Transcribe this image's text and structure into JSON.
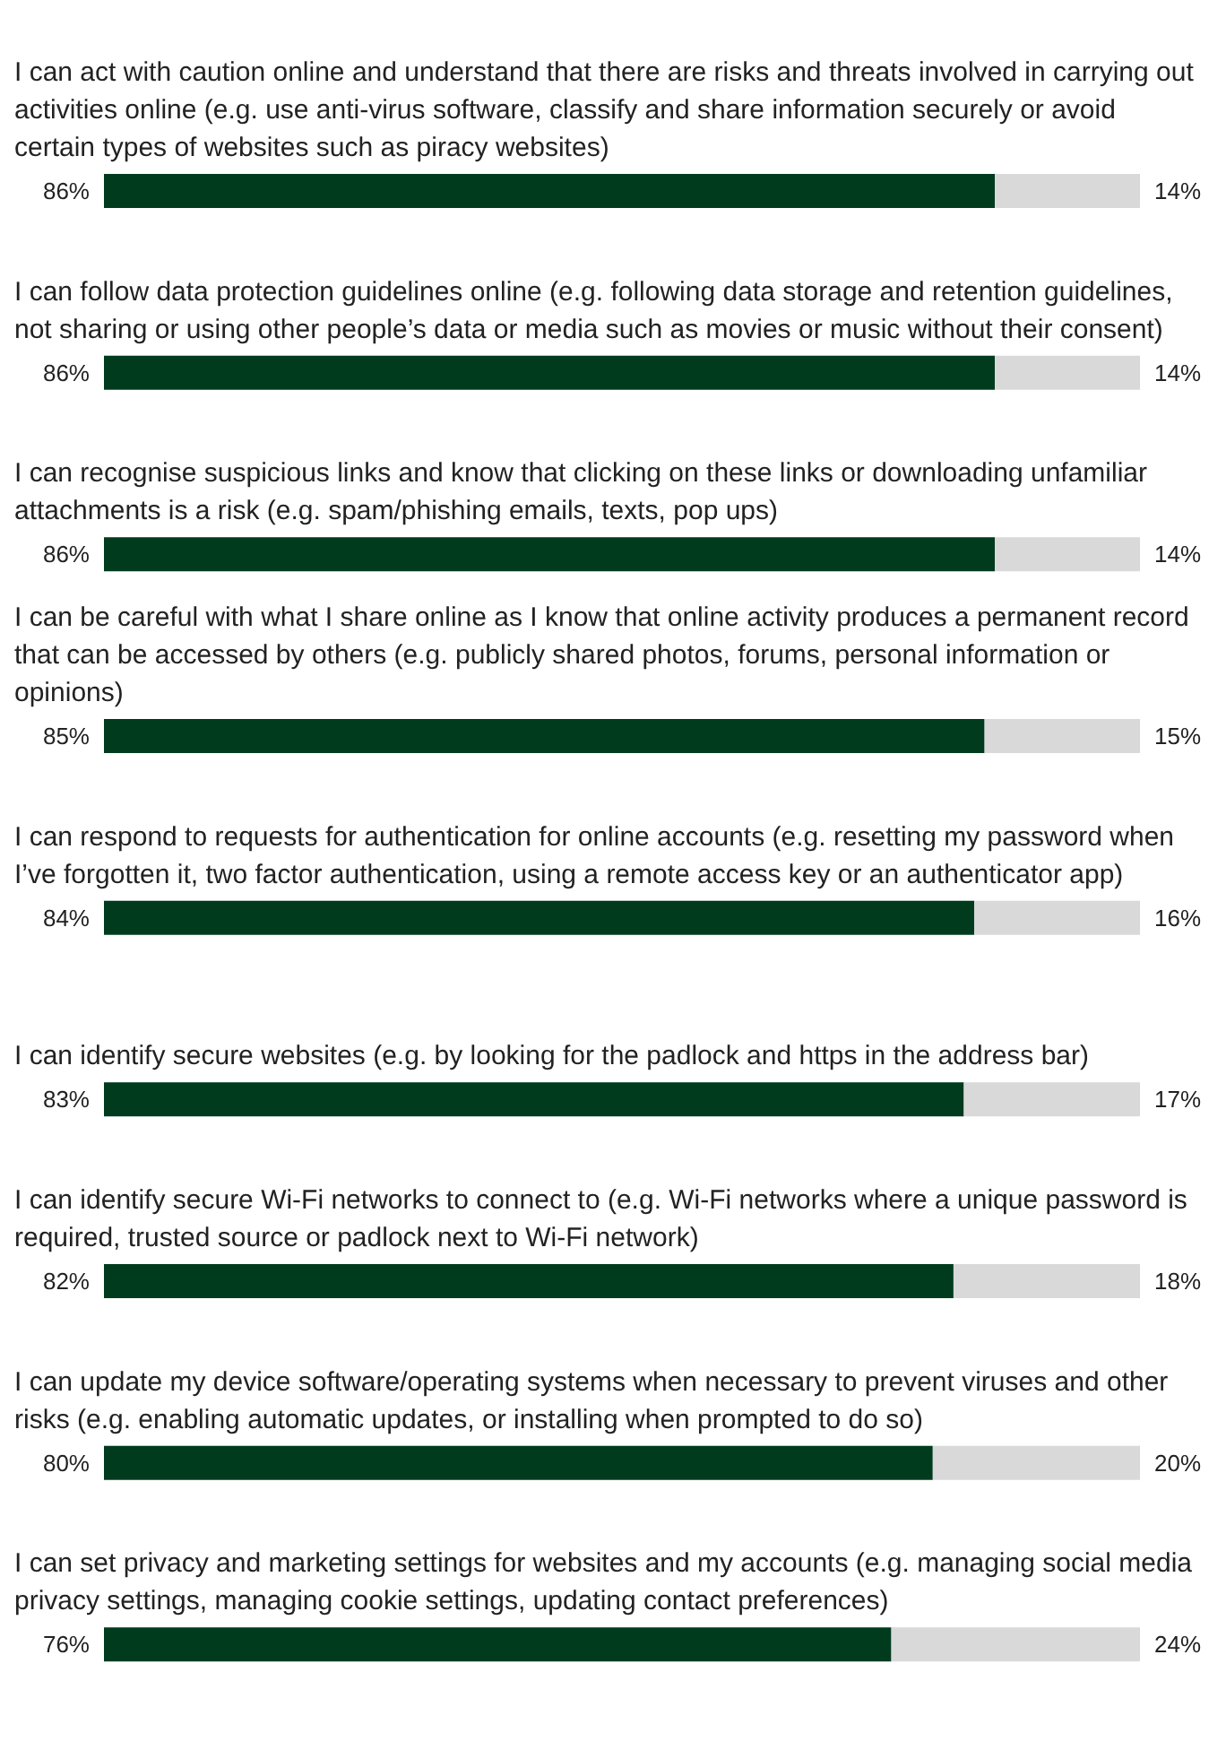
{
  "chart_data": {
    "type": "bar",
    "orientation": "horizontal",
    "stacked": true,
    "categories": [
      "I can act with caution online and understand that there are risks and threats involved in carrying out activities online (e.g. use anti-virus software, classify and share information securely or avoid certain types of websites such as piracy websites)",
      "I can follow data protection guidelines online (e.g. following data storage and retention guidelines, not sharing or using other people’s data or media such as movies or music without their consent)",
      "I can recognise suspicious links and know that clicking on these links or downloading unfamiliar attachments is a risk (e.g. spam/phishing emails, texts, pop ups)",
      "I can be careful with what I share online as I know that online activity produces a permanent record that can be accessed by others (e.g. publicly shared photos, forums, personal information or opinions)",
      "I can respond to requests for authentication for online accounts (e.g. resetting my password when I’ve forgotten it, two factor authentication, using a remote access key or an authenticator app)",
      "I can identify secure websites (e.g. by looking for the padlock and https in the address bar)",
      "I can identify secure Wi-Fi networks to connect to (e.g. Wi-Fi networks where a unique password is required, trusted source or padlock next to Wi-Fi network)",
      "I can update my device software/operating systems when necessary to prevent viruses and other risks (e.g. enabling automatic updates, or installing when prompted to do so)",
      "I can set privacy and marketing settings for websites and my accounts (e.g. managing social media privacy settings, managing cookie settings, updating contact preferences)"
    ],
    "series": [
      {
        "color": "#003b1e",
        "values": [
          86,
          86,
          86,
          85,
          84,
          83,
          82,
          80,
          76
        ],
        "value_labels": [
          "86%",
          "86%",
          "86%",
          "85%",
          "84%",
          "83%",
          "82%",
          "80%",
          "76%"
        ]
      },
      {
        "color": "#d9d9d9",
        "values": [
          14,
          14,
          14,
          15,
          16,
          17,
          18,
          20,
          24
        ],
        "value_labels": [
          "14%",
          "14%",
          "14%",
          "15%",
          "16%",
          "17%",
          "18%",
          "20%",
          "24%"
        ]
      }
    ]
  }
}
